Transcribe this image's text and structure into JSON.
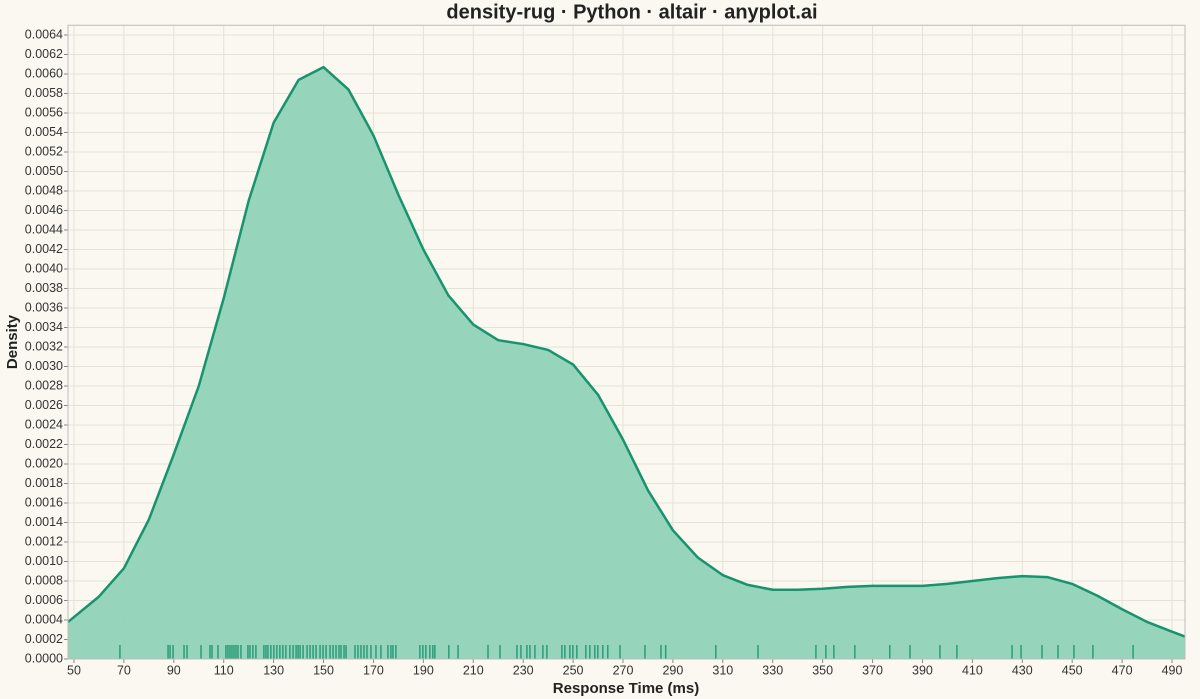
{
  "chart_data": {
    "type": "density-rug",
    "title": "density-rug · Python · altair · anyplot.ai",
    "x_label": "Response Time (ms)",
    "y_label": "Density",
    "color": "#17936d",
    "fill": "#90d3b8",
    "grid": true,
    "xlim": [
      47.6,
      495.2
    ],
    "ylim": [
      0,
      0.0065
    ],
    "xticks": [
      50,
      70,
      90,
      110,
      130,
      150,
      170,
      190,
      210,
      230,
      250,
      270,
      290,
      310,
      330,
      350,
      370,
      390,
      410,
      430,
      450,
      470,
      490
    ],
    "yticks": [
      {
        "value": 0,
        "label": "0.0000"
      },
      {
        "value": 0.0002,
        "label": "0.0002"
      },
      {
        "value": 0.0004,
        "label": "0.0004"
      },
      {
        "value": 0.0006,
        "label": "0.0006"
      },
      {
        "value": 0.0008,
        "label": "0.0008"
      },
      {
        "value": 0.001,
        "label": "0.0010"
      },
      {
        "value": 0.0012,
        "label": "0.0012"
      },
      {
        "value": 0.0014,
        "label": "0.0014"
      },
      {
        "value": 0.0016,
        "label": "0.0016"
      },
      {
        "value": 0.0018,
        "label": "0.0018"
      },
      {
        "value": 0.002,
        "label": "0.0020"
      },
      {
        "value": 0.0022,
        "label": "0.0022"
      },
      {
        "value": 0.0024,
        "label": "0.0024"
      },
      {
        "value": 0.0026,
        "label": "0.0026"
      },
      {
        "value": 0.0028,
        "label": "0.0028"
      },
      {
        "value": 0.003,
        "label": "0.0030"
      },
      {
        "value": 0.0032,
        "label": "0.0032"
      },
      {
        "value": 0.0034,
        "label": "0.0034"
      },
      {
        "value": 0.0036,
        "label": "0.0036"
      },
      {
        "value": 0.0038,
        "label": "0.0038"
      },
      {
        "value": 0.004,
        "label": "0.0040"
      },
      {
        "value": 0.0042,
        "label": "0.0042"
      },
      {
        "value": 0.0044,
        "label": "0.0044"
      },
      {
        "value": 0.0046,
        "label": "0.0046"
      },
      {
        "value": 0.0048,
        "label": "0.0048"
      },
      {
        "value": 0.005,
        "label": "0.0050"
      },
      {
        "value": 0.0052,
        "label": "0.0052"
      },
      {
        "value": 0.0054,
        "label": "0.0054"
      },
      {
        "value": 0.0056,
        "label": "0.0056"
      },
      {
        "value": 0.0058,
        "label": "0.0058"
      },
      {
        "value": 0.006,
        "label": "0.0060"
      },
      {
        "value": 0.0062,
        "label": "0.0062"
      },
      {
        "value": 0.0064,
        "label": "0.0064"
      }
    ],
    "x": [
      47.6,
      50,
      60,
      70,
      80,
      90,
      100,
      110,
      120,
      130,
      140,
      150,
      160,
      170,
      180,
      190,
      200,
      210,
      220,
      230,
      240,
      250,
      260,
      270,
      280,
      290,
      300,
      310,
      320,
      330,
      340,
      350,
      360,
      370,
      380,
      390,
      400,
      410,
      420,
      430,
      440,
      450,
      460,
      470,
      480,
      490,
      495.2
    ],
    "values": [
      0.00038,
      0.00043,
      0.00064,
      0.00093,
      0.00143,
      0.0021,
      0.0028,
      0.0037,
      0.0047,
      0.0055,
      0.00594,
      0.00607,
      0.00584,
      0.00537,
      0.00476,
      0.0042,
      0.00373,
      0.00343,
      0.00327,
      0.00323,
      0.00317,
      0.00302,
      0.00271,
      0.00225,
      0.00173,
      0.00132,
      0.00104,
      0.00086,
      0.00076,
      0.00071,
      0.00071,
      0.00072,
      0.00074,
      0.00075,
      0.00075,
      0.00075,
      0.00077,
      0.0008,
      0.00083,
      0.00085,
      0.00084,
      0.00077,
      0.00065,
      0.00051,
      0.00038,
      0.00028,
      0.00023
    ],
    "rug": [
      68.4,
      87.7,
      88.5,
      89.7,
      94.1,
      95.3,
      100.9,
      104.5,
      105.3,
      107.7,
      110.9,
      111.7,
      112.5,
      113.3,
      114.1,
      114.9,
      115.7,
      116.9,
      119.7,
      120.5,
      121.7,
      122.9,
      126.1,
      126.9,
      127.7,
      128.9,
      130.1,
      131.3,
      132.5,
      133.7,
      134.9,
      136.5,
      137.8,
      139.0,
      139.8,
      140.6,
      141.8,
      143.4,
      144.6,
      145.8,
      147.0,
      148.6,
      149.8,
      151.0,
      152.6,
      153.8,
      155.0,
      156.2,
      157.0,
      158.2,
      159.0,
      162.6,
      163.8,
      165.0,
      166.2,
      167.4,
      169.0,
      171.0,
      173.0,
      175.8,
      177.0,
      177.8,
      179.0,
      188.6,
      189.8,
      191.0,
      192.6,
      193.8,
      194.6,
      200.2,
      203.9,
      215.9,
      220.7,
      227.5,
      229.1,
      231.5,
      232.7,
      234.7,
      237.9,
      239.5,
      245.5,
      246.7,
      248.7,
      249.9,
      251.5,
      255.1,
      256.7,
      258.7,
      259.9,
      261.9,
      263.9,
      268.8,
      278.8,
      285.2,
      287.1,
      307.2,
      324.1,
      347.3,
      351.3,
      354.5,
      362.9,
      376.9,
      385.0,
      397.0,
      403.8,
      425.9,
      429.5,
      437.9,
      444.3,
      450.7,
      458.3,
      474.4
    ]
  }
}
